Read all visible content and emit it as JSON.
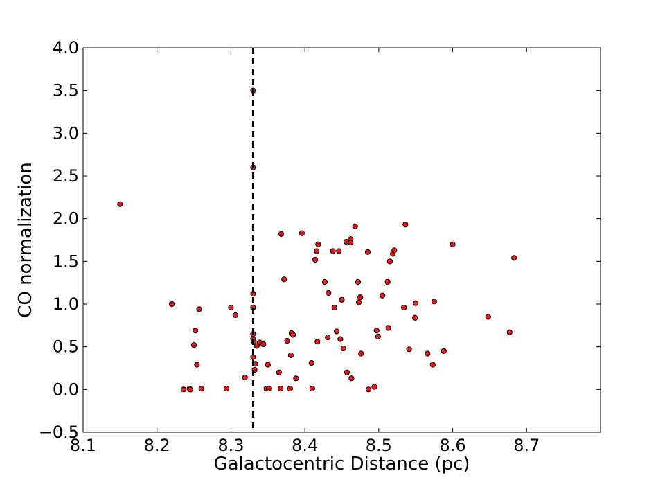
{
  "chart_data": {
    "type": "scatter",
    "title": "",
    "xlabel": "Galactocentric Distance (pc)",
    "ylabel": "CO normalization",
    "xlim": [
      8.1,
      8.8
    ],
    "ylim": [
      -0.5,
      4.0
    ],
    "xticks": [
      "8.1",
      "8.2",
      "8.3",
      "8.4",
      "8.5",
      "8.6",
      "8.7"
    ],
    "yticks": [
      "−0.5",
      "0.0",
      "0.5",
      "1.0",
      "1.5",
      "2.0",
      "2.5",
      "3.0",
      "3.5",
      "4.0"
    ],
    "grid": false,
    "reference_line": {
      "x": 8.33,
      "style": "dashed",
      "color": "#000000"
    },
    "marker_color": "#e31a1c",
    "marker_edge": "#000000",
    "points": [
      {
        "x": 8.15,
        "y": 2.17
      },
      {
        "x": 8.22,
        "y": 1.0
      },
      {
        "x": 8.236,
        "y": 0.0
      },
      {
        "x": 8.244,
        "y": 0.01
      },
      {
        "x": 8.245,
        "y": 0.0
      },
      {
        "x": 8.25,
        "y": 0.52
      },
      {
        "x": 8.252,
        "y": 0.69
      },
      {
        "x": 8.254,
        "y": 0.29
      },
      {
        "x": 8.257,
        "y": 0.94
      },
      {
        "x": 8.26,
        "y": 0.01
      },
      {
        "x": 8.294,
        "y": 0.01
      },
      {
        "x": 8.3,
        "y": 0.96
      },
      {
        "x": 8.306,
        "y": 0.87
      },
      {
        "x": 8.319,
        "y": 0.14
      },
      {
        "x": 8.33,
        "y": 3.5
      },
      {
        "x": 8.33,
        "y": 2.6
      },
      {
        "x": 8.33,
        "y": 1.12
      },
      {
        "x": 8.33,
        "y": 0.96
      },
      {
        "x": 8.33,
        "y": 0.65
      },
      {
        "x": 8.33,
        "y": 0.59
      },
      {
        "x": 8.331,
        "y": 0.56
      },
      {
        "x": 8.33,
        "y": 0.38
      },
      {
        "x": 8.332,
        "y": 0.23
      },
      {
        "x": 8.333,
        "y": 0.3
      },
      {
        "x": 8.335,
        "y": 0.51
      },
      {
        "x": 8.339,
        "y": 0.55
      },
      {
        "x": 8.344,
        "y": 0.53
      },
      {
        "x": 8.348,
        "y": 0.01
      },
      {
        "x": 8.35,
        "y": 0.29
      },
      {
        "x": 8.351,
        "y": 0.01
      },
      {
        "x": 8.365,
        "y": 0.2
      },
      {
        "x": 8.367,
        "y": 0.01
      },
      {
        "x": 8.368,
        "y": 1.82
      },
      {
        "x": 8.372,
        "y": 1.29
      },
      {
        "x": 8.376,
        "y": 0.57
      },
      {
        "x": 8.38,
        "y": 0.01
      },
      {
        "x": 8.381,
        "y": 0.4
      },
      {
        "x": 8.382,
        "y": 0.66
      },
      {
        "x": 8.384,
        "y": 0.64
      },
      {
        "x": 8.388,
        "y": 0.13
      },
      {
        "x": 8.396,
        "y": 1.83
      },
      {
        "x": 8.409,
        "y": 0.31
      },
      {
        "x": 8.41,
        "y": 0.01
      },
      {
        "x": 8.414,
        "y": 1.52
      },
      {
        "x": 8.416,
        "y": 1.62
      },
      {
        "x": 8.417,
        "y": 0.56
      },
      {
        "x": 8.418,
        "y": 1.7
      },
      {
        "x": 8.427,
        "y": 1.26
      },
      {
        "x": 8.431,
        "y": 0.61
      },
      {
        "x": 8.432,
        "y": 1.13
      },
      {
        "x": 8.438,
        "y": 1.62
      },
      {
        "x": 8.44,
        "y": 0.96
      },
      {
        "x": 8.443,
        "y": 0.68
      },
      {
        "x": 8.446,
        "y": 1.62
      },
      {
        "x": 8.448,
        "y": 0.59
      },
      {
        "x": 8.45,
        "y": 1.05
      },
      {
        "x": 8.452,
        "y": 0.48
      },
      {
        "x": 8.456,
        "y": 1.73
      },
      {
        "x": 8.457,
        "y": 0.2
      },
      {
        "x": 8.462,
        "y": 1.76
      },
      {
        "x": 8.462,
        "y": 1.72
      },
      {
        "x": 8.463,
        "y": 0.13
      },
      {
        "x": 8.468,
        "y": 1.91
      },
      {
        "x": 8.472,
        "y": 1.26
      },
      {
        "x": 8.473,
        "y": 1.02
      },
      {
        "x": 8.475,
        "y": 1.08
      },
      {
        "x": 8.476,
        "y": 0.42
      },
      {
        "x": 8.485,
        "y": 1.61
      },
      {
        "x": 8.486,
        "y": 0.0
      },
      {
        "x": 8.494,
        "y": 0.03
      },
      {
        "x": 8.497,
        "y": 0.69
      },
      {
        "x": 8.499,
        "y": 0.62
      },
      {
        "x": 8.505,
        "y": 1.1
      },
      {
        "x": 8.512,
        "y": 1.26
      },
      {
        "x": 8.513,
        "y": 0.72
      },
      {
        "x": 8.515,
        "y": 1.5
      },
      {
        "x": 8.519,
        "y": 1.59
      },
      {
        "x": 8.521,
        "y": 1.63
      },
      {
        "x": 8.534,
        "y": 0.96
      },
      {
        "x": 8.536,
        "y": 1.93
      },
      {
        "x": 8.541,
        "y": 0.47
      },
      {
        "x": 8.549,
        "y": 0.84
      },
      {
        "x": 8.55,
        "y": 1.01
      },
      {
        "x": 8.566,
        "y": 0.42
      },
      {
        "x": 8.573,
        "y": 0.29
      },
      {
        "x": 8.575,
        "y": 1.03
      },
      {
        "x": 8.588,
        "y": 0.45
      },
      {
        "x": 8.6,
        "y": 1.7
      },
      {
        "x": 8.648,
        "y": 0.85
      },
      {
        "x": 8.677,
        "y": 0.67
      },
      {
        "x": 8.683,
        "y": 1.54
      }
    ]
  }
}
